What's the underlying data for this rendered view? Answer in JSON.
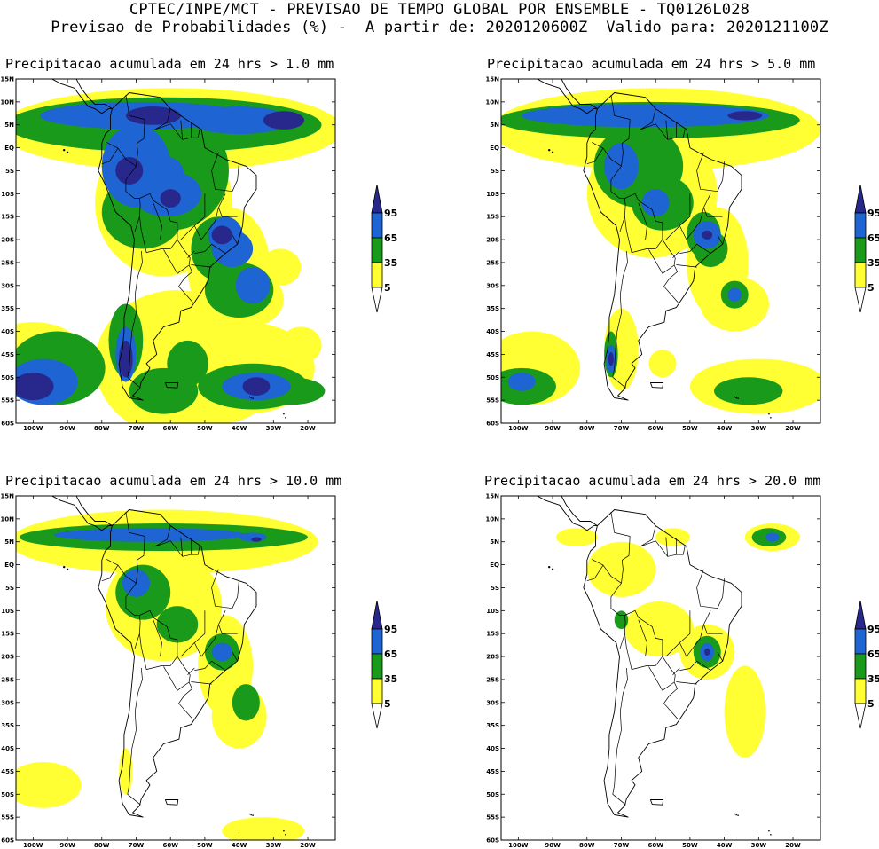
{
  "header": {
    "line1": "CPTEC/INPE/MCT - PREVISAO DE TEMPO GLOBAL POR ENSEMBLE - TQ0126L028",
    "line2": "Previsao de Probabilidades (%) -  A partir de: 2020120600Z  Valido para: 2020121100Z"
  },
  "panels": [
    {
      "title": "Precipitacao acumulada em 24 hrs > 1.0 mm"
    },
    {
      "title": "Precipitacao acumulada em 24 hrs > 5.0 mm"
    },
    {
      "title": "Precipitacao acumulada em 24 hrs > 10.0 mm"
    },
    {
      "title": "Precipitacao acumulada em 24 hrs > 20.0 mm"
    }
  ],
  "axes": {
    "lat_labels": [
      "15N",
      "10N",
      "5N",
      "EQ",
      "5S",
      "10S",
      "15S",
      "20S",
      "25S",
      "30S",
      "35S",
      "40S",
      "45S",
      "50S",
      "55S",
      "60S"
    ],
    "lon_labels": [
      "100W",
      "90W",
      "80W",
      "70W",
      "60W",
      "50W",
      "40W",
      "30W",
      "20W"
    ]
  },
  "legend": {
    "labels": [
      "95",
      "65",
      "35",
      "5"
    ],
    "colors": {
      "c5": "#ffff33",
      "c35": "#1a9a1a",
      "c65": "#1e64d2",
      "c95": "#28288c"
    }
  }
}
